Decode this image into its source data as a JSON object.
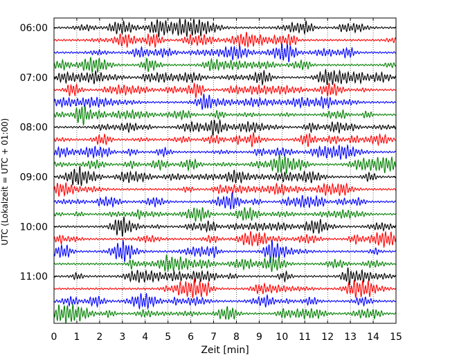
{
  "chart_data": {
    "type": "line",
    "subtype": "helicorder",
    "title": "",
    "xlabel": "Zeit  [min]",
    "ylabel": "UTC (Lokalzeit = UTC + 01:00)",
    "xlim": [
      0,
      15
    ],
    "x_ticks": [
      0,
      1,
      2,
      3,
      4,
      5,
      6,
      7,
      8,
      9,
      10,
      11,
      12,
      13,
      14,
      15
    ],
    "x_tick_labels": [
      "0",
      "1",
      "2",
      "3",
      "4",
      "5",
      "6",
      "7",
      "8",
      "9",
      "10",
      "11",
      "12",
      "13",
      "14",
      "15"
    ],
    "y_tick_labels": [
      "06:00",
      "07:00",
      "08:00",
      "09:00",
      "10:00",
      "11:00"
    ],
    "lines_per_hour": 4,
    "minutes_per_line": 15,
    "trace_start_times": [
      "06:00",
      "06:15",
      "06:30",
      "06:45",
      "07:00",
      "07:15",
      "07:30",
      "07:45",
      "08:00",
      "08:15",
      "08:30",
      "08:45",
      "09:00",
      "09:15",
      "09:30",
      "09:45",
      "10:00",
      "10:15",
      "10:30",
      "10:45",
      "11:00",
      "11:15",
      "11:30",
      "11:45"
    ],
    "trace_colors": [
      "#000000",
      "#ff0000",
      "#0000ff",
      "#008000"
    ],
    "grid": {
      "x": true,
      "style": "dotted"
    },
    "legend": "none"
  }
}
